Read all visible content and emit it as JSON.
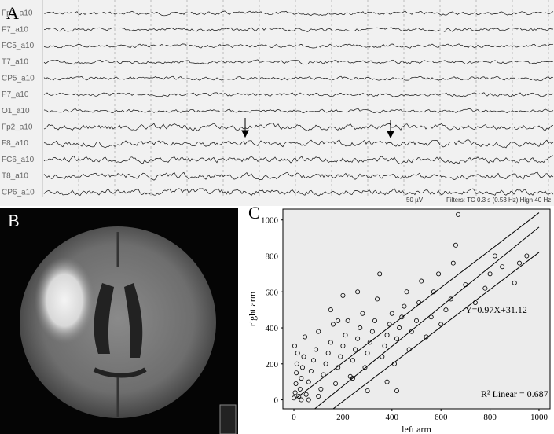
{
  "panel_a": {
    "label": "A",
    "channels": [
      "Fp1_a10",
      "F7_a10",
      "FC5_a10",
      "T7_a10",
      "CP5_a10",
      "P7_a10",
      "O1_a10",
      "Fp2_a10",
      "F8_a10",
      "FC6_a10",
      "T8_a10",
      "CP6_a10"
    ],
    "scale": "50 µV",
    "filters": "Filters: TC 0.3 s (0.53 Hz)  High 40 Hz"
  },
  "panel_b": {
    "label": "B"
  },
  "chart_data": {
    "type": "scatter",
    "label": "C",
    "x_label": "left arm",
    "y_label": "right arm",
    "x": [
      0,
      5,
      8,
      10,
      12,
      15,
      3,
      20,
      25,
      30,
      35,
      40,
      45,
      50,
      60,
      70,
      80,
      90,
      100,
      110,
      120,
      130,
      140,
      150,
      160,
      170,
      180,
      190,
      200,
      210,
      220,
      230,
      240,
      250,
      260,
      270,
      280,
      290,
      300,
      310,
      320,
      330,
      340,
      350,
      360,
      370,
      380,
      390,
      400,
      410,
      420,
      430,
      440,
      450,
      460,
      470,
      480,
      500,
      510,
      520,
      540,
      560,
      570,
      590,
      600,
      620,
      640,
      650,
      660,
      670,
      700,
      740,
      780,
      800,
      820,
      850,
      900,
      920,
      950,
      380,
      300,
      420,
      200,
      260,
      150,
      180,
      240,
      100,
      60,
      30
    ],
    "values": [
      10,
      40,
      90,
      150,
      200,
      260,
      300,
      20,
      60,
      120,
      180,
      240,
      350,
      30,
      100,
      160,
      220,
      280,
      380,
      60,
      140,
      200,
      260,
      320,
      420,
      90,
      180,
      240,
      300,
      360,
      440,
      130,
      220,
      280,
      340,
      400,
      480,
      180,
      260,
      320,
      380,
      440,
      560,
      700,
      240,
      300,
      360,
      420,
      480,
      200,
      340,
      400,
      460,
      520,
      600,
      280,
      380,
      440,
      540,
      660,
      350,
      460,
      600,
      700,
      420,
      500,
      560,
      760,
      860,
      1030,
      640,
      540,
      620,
      700,
      800,
      740,
      650,
      760,
      800,
      100,
      50,
      50,
      580,
      600,
      500,
      440,
      120,
      20,
      0,
      0
    ],
    "color": "#000000",
    "xlim": [
      -45,
      1045
    ],
    "ylim": [
      -50,
      1060
    ],
    "xticks": [
      0,
      200,
      400,
      600,
      800,
      1000
    ],
    "yticks": [
      0,
      200,
      400,
      600,
      800,
      1000
    ],
    "fit_lines": [
      {
        "x": [
          10,
          1000
        ],
        "y": [
          10,
          1040
        ]
      },
      {
        "x": [
          85,
          1000
        ],
        "y": [
          -50,
          960
        ]
      },
      {
        "x": [
          160,
          1000
        ],
        "y": [
          -50,
          820
        ]
      }
    ],
    "equation": "Y=0.97X+31.12",
    "r_squared": "R² Linear = 0.687"
  }
}
